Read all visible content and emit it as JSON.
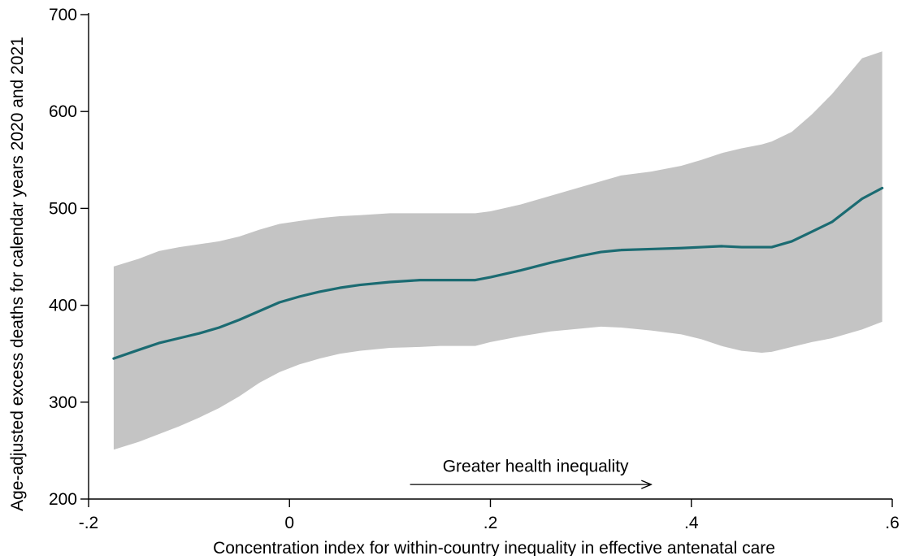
{
  "chart_data": {
    "type": "line",
    "title": "",
    "xlabel": "Concentration index for within-country inequality in effective antenatal care",
    "ylabel": "Age-adjusted excess deaths for calendar years 2020 and 2021",
    "xlim": [
      -0.2,
      0.6
    ],
    "ylim": [
      200,
      700
    ],
    "x_ticks": [
      -0.2,
      0,
      0.2,
      0.4,
      0.6
    ],
    "x_tick_labels": [
      "-.2",
      "0",
      ".2",
      ".4",
      ".6"
    ],
    "y_ticks": [
      200,
      300,
      400,
      500,
      600,
      700
    ],
    "y_tick_labels": [
      "200",
      "300",
      "400",
      "500",
      "600",
      "700"
    ],
    "grid": false,
    "legend": "none",
    "colors": {
      "line": "#1b6b72",
      "band": "#c4c4c4",
      "axis": "#000000"
    },
    "series": [
      {
        "x": [
          -0.175,
          -0.15,
          -0.13,
          -0.11,
          -0.09,
          -0.07,
          -0.05,
          -0.03,
          -0.01,
          0.01,
          0.03,
          0.05,
          0.07,
          0.1,
          0.13,
          0.15,
          0.185,
          0.2,
          0.23,
          0.26,
          0.29,
          0.31,
          0.33,
          0.36,
          0.39,
          0.41,
          0.43,
          0.45,
          0.47,
          0.48,
          0.5,
          0.52,
          0.54,
          0.57,
          0.59
        ],
        "y": [
          345,
          354,
          361,
          366,
          371,
          377,
          385,
          394,
          403,
          409,
          414,
          418,
          421,
          424,
          426,
          426,
          426,
          429,
          436,
          444,
          451,
          455,
          457,
          458,
          459,
          460,
          461,
          460,
          460,
          460,
          466,
          476,
          486,
          510,
          521
        ],
        "lower": [
          251,
          259,
          267,
          275,
          284,
          294,
          306,
          320,
          331,
          339,
          345,
          350,
          353,
          356,
          357,
          358,
          358,
          362,
          368,
          373,
          376,
          378,
          377,
          374,
          370,
          365,
          358,
          353,
          351,
          352,
          357,
          362,
          366,
          375,
          383
        ],
        "upper": [
          440,
          448,
          456,
          460,
          463,
          466,
          471,
          478,
          484,
          487,
          490,
          492,
          493,
          495,
          495,
          495,
          495,
          497,
          504,
          513,
          522,
          528,
          534,
          538,
          544,
          550,
          557,
          562,
          566,
          569,
          579,
          597,
          618,
          655,
          662
        ]
      }
    ],
    "annotations": [
      {
        "text": "Greater health inequality",
        "x": 0.245,
        "y": 228,
        "arrow_from": [
          0.12,
          215
        ],
        "arrow_to": [
          0.36,
          215
        ]
      }
    ]
  }
}
